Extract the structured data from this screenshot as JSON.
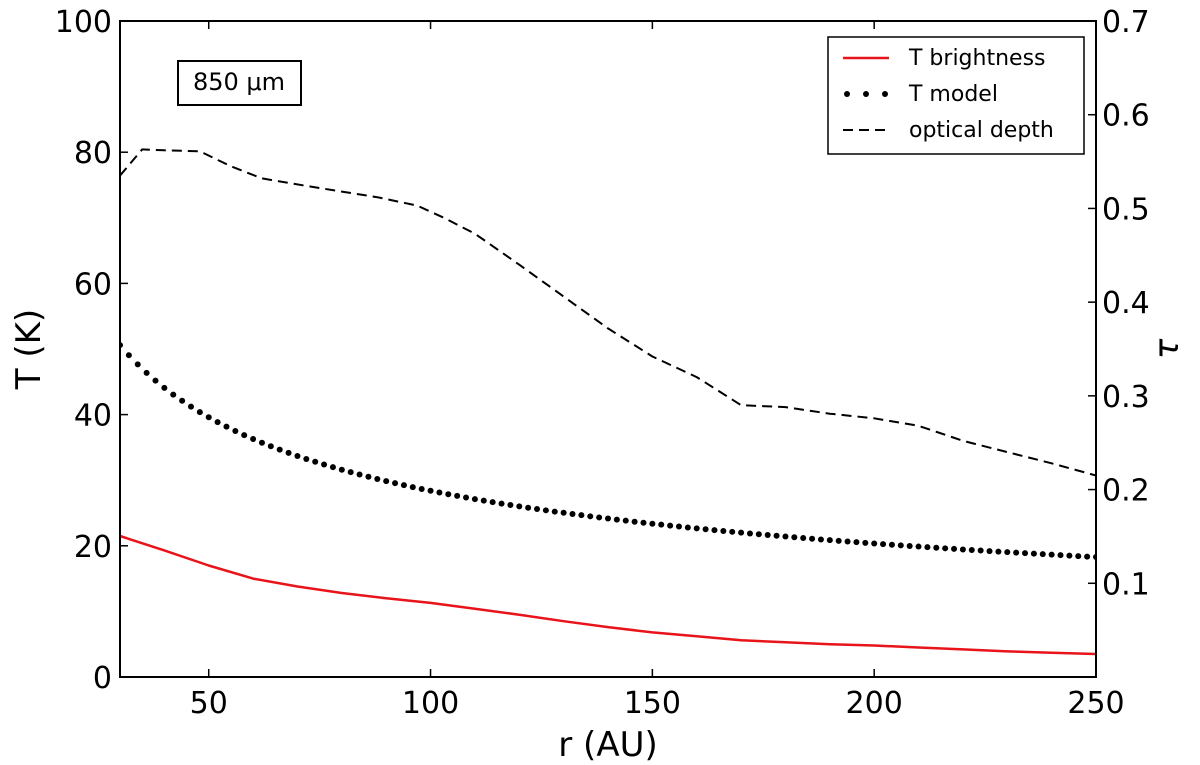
{
  "chart_data": {
    "type": "line",
    "title": "",
    "annotation": "850 μm",
    "xlabel": "r (AU)",
    "ylabel": "T (K)",
    "y2label": "τ",
    "xlim": [
      30,
      250
    ],
    "ylim": [
      0,
      100
    ],
    "y2lim": [
      0.0,
      0.7
    ],
    "xticks": [
      50,
      100,
      150,
      200,
      250
    ],
    "yticks": [
      0,
      20,
      40,
      60,
      80,
      100
    ],
    "y2ticks": [
      0.1,
      0.2,
      0.3,
      0.4,
      0.5,
      0.6,
      0.7
    ],
    "xtick_labels": [
      "50",
      "100",
      "150",
      "200",
      "250"
    ],
    "ytick_labels": [
      "0",
      "20",
      "40",
      "60",
      "80",
      "100"
    ],
    "y2tick_labels": [
      "0.1",
      "0.2",
      "0.3",
      "0.4",
      "0.5",
      "0.6",
      "0.7"
    ],
    "legend_position": "top-right",
    "series": [
      {
        "name": "T brightness",
        "axis": "left",
        "style": "solid",
        "color": "#e8141a",
        "x": [
          30,
          40,
          50,
          60,
          70,
          80,
          90,
          100,
          110,
          120,
          130,
          140,
          150,
          160,
          170,
          180,
          190,
          200,
          210,
          220,
          230,
          240,
          250
        ],
        "values": [
          21.5,
          19.3,
          17.0,
          15.0,
          13.8,
          12.8,
          12.0,
          11.3,
          10.4,
          9.5,
          8.5,
          7.6,
          6.8,
          6.2,
          5.6,
          5.3,
          5.0,
          4.8,
          4.5,
          4.2,
          3.9,
          3.7,
          3.5
        ]
      },
      {
        "name": "T model",
        "axis": "left",
        "style": "dotted",
        "color": "#000000",
        "x_start": 30,
        "x_end": 250,
        "x_step": 2,
        "model": "T = 50.6 * (r/30)^-0.48"
      },
      {
        "name": "optical depth",
        "axis": "right",
        "style": "dashed",
        "color": "#000000",
        "x": [
          30,
          35,
          40,
          48,
          55,
          62,
          72,
          80,
          88,
          97,
          103,
          110,
          120,
          130,
          140,
          150,
          160,
          170,
          180,
          190,
          200,
          210,
          220,
          230,
          240,
          250
        ],
        "values": [
          0.535,
          0.563,
          0.562,
          0.561,
          0.545,
          0.532,
          0.524,
          0.518,
          0.512,
          0.503,
          0.49,
          0.473,
          0.44,
          0.406,
          0.372,
          0.342,
          0.32,
          0.29,
          0.288,
          0.281,
          0.276,
          0.268,
          0.252,
          0.24,
          0.228,
          0.215
        ]
      }
    ]
  }
}
